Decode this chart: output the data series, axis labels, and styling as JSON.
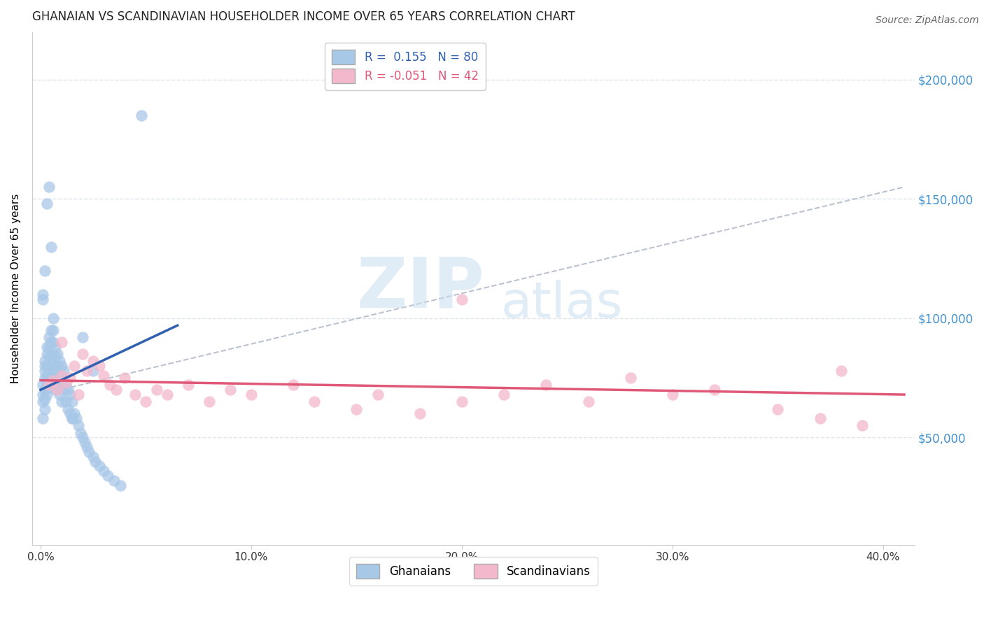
{
  "title": "GHANAIAN VS SCANDINAVIAN HOUSEHOLDER INCOME OVER 65 YEARS CORRELATION CHART",
  "source": "Source: ZipAtlas.com",
  "ylabel": "Householder Income Over 65 years",
  "xlabel_ticks": [
    "0.0%",
    "10.0%",
    "20.0%",
    "30.0%",
    "40.0%"
  ],
  "xlabel_vals": [
    0.0,
    0.1,
    0.2,
    0.3,
    0.4
  ],
  "ylabel_ticks": [
    "$50,000",
    "$100,000",
    "$150,000",
    "$200,000"
  ],
  "ylabel_vals": [
    50000,
    100000,
    150000,
    200000
  ],
  "xlim": [
    -0.004,
    0.415
  ],
  "ylim": [
    5000,
    220000
  ],
  "background_color": "#ffffff",
  "ghanaian_color": "#a8c8e8",
  "scandinavian_color": "#f4b8cc",
  "ghanaian_trendline_color": "#3060b0",
  "scandinavian_trendline_color": "#e05878",
  "dashed_line_color": "#b0b8c8",
  "grid_color": "#dde4ee",
  "right_label_color": "#4090d0",
  "ghanaian_x": [
    0.001,
    0.001,
    0.001,
    0.001,
    0.002,
    0.002,
    0.002,
    0.002,
    0.002,
    0.002,
    0.002,
    0.003,
    0.003,
    0.003,
    0.003,
    0.003,
    0.003,
    0.004,
    0.004,
    0.004,
    0.004,
    0.004,
    0.005,
    0.005,
    0.005,
    0.005,
    0.005,
    0.006,
    0.006,
    0.006,
    0.006,
    0.006,
    0.007,
    0.007,
    0.007,
    0.007,
    0.008,
    0.008,
    0.008,
    0.009,
    0.009,
    0.009,
    0.01,
    0.01,
    0.01,
    0.011,
    0.011,
    0.012,
    0.012,
    0.013,
    0.013,
    0.014,
    0.014,
    0.015,
    0.015,
    0.016,
    0.017,
    0.018,
    0.019,
    0.02,
    0.021,
    0.022,
    0.023,
    0.025,
    0.026,
    0.028,
    0.03,
    0.032,
    0.035,
    0.038,
    0.001,
    0.001,
    0.002,
    0.003,
    0.004,
    0.005,
    0.015,
    0.02,
    0.025,
    0.048
  ],
  "ghanaian_y": [
    68000,
    72000,
    65000,
    58000,
    80000,
    78000,
    75000,
    82000,
    70000,
    66000,
    62000,
    88000,
    85000,
    80000,
    76000,
    72000,
    68000,
    92000,
    88000,
    84000,
    80000,
    76000,
    95000,
    90000,
    85000,
    78000,
    72000,
    100000,
    95000,
    90000,
    82000,
    75000,
    88000,
    84000,
    78000,
    70000,
    85000,
    80000,
    72000,
    82000,
    76000,
    68000,
    80000,
    72000,
    65000,
    78000,
    70000,
    72000,
    65000,
    70000,
    62000,
    68000,
    60000,
    65000,
    58000,
    60000,
    58000,
    55000,
    52000,
    50000,
    48000,
    46000,
    44000,
    42000,
    40000,
    38000,
    36000,
    34000,
    32000,
    30000,
    110000,
    108000,
    120000,
    148000,
    155000,
    130000,
    58000,
    92000,
    78000,
    185000
  ],
  "scandinavian_x": [
    0.004,
    0.006,
    0.008,
    0.01,
    0.012,
    0.014,
    0.016,
    0.018,
    0.02,
    0.022,
    0.025,
    0.028,
    0.03,
    0.033,
    0.036,
    0.04,
    0.045,
    0.05,
    0.055,
    0.06,
    0.07,
    0.08,
    0.09,
    0.1,
    0.12,
    0.13,
    0.15,
    0.16,
    0.18,
    0.2,
    0.22,
    0.24,
    0.26,
    0.28,
    0.3,
    0.32,
    0.35,
    0.37,
    0.39,
    0.01,
    0.2,
    0.38
  ],
  "scandinavian_y": [
    72000,
    74000,
    70000,
    76000,
    73000,
    75000,
    80000,
    68000,
    85000,
    78000,
    82000,
    80000,
    76000,
    72000,
    70000,
    75000,
    68000,
    65000,
    70000,
    68000,
    72000,
    65000,
    70000,
    68000,
    72000,
    65000,
    62000,
    68000,
    60000,
    65000,
    68000,
    72000,
    65000,
    75000,
    68000,
    70000,
    62000,
    58000,
    55000,
    90000,
    108000,
    78000
  ],
  "ghanaian_trend_x": [
    0.0,
    0.065
  ],
  "ghanaian_trend_y": [
    70000,
    97000
  ],
  "scandinavian_trend_x": [
    0.0,
    0.41
  ],
  "scandinavian_trend_y": [
    74000,
    68000
  ],
  "dashed_trend_x": [
    0.0,
    0.41
  ],
  "dashed_trend_y": [
    68000,
    155000
  ]
}
